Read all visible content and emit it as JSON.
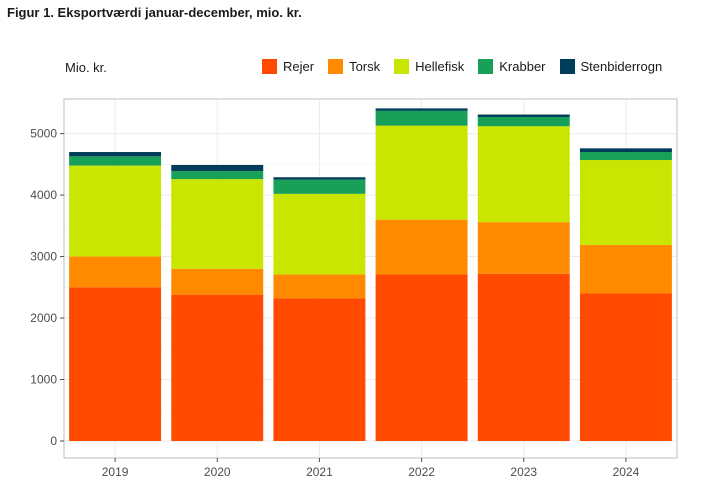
{
  "figure": {
    "title": "Figur 1. Eksportværdi januar-december, mio. kr."
  },
  "colors": {
    "Rejer": "#ff4a00",
    "Torsk": "#ff8a00",
    "Hellefisk": "#c8e600",
    "Krabber": "#18a058",
    "Stenbiderrogn": "#003d5b"
  },
  "chart_data": {
    "type": "bar",
    "stacked": true,
    "title": "Figur 1. Eksportværdi januar-december, mio. kr.",
    "xlabel": "",
    "ylabel": "Mio. kr.",
    "categories": [
      "2019",
      "2020",
      "2021",
      "2022",
      "2023",
      "2024"
    ],
    "series": [
      {
        "name": "Rejer",
        "values": [
          2500,
          2380,
          2320,
          2710,
          2720,
          2400
        ]
      },
      {
        "name": "Torsk",
        "values": [
          500,
          420,
          390,
          890,
          840,
          790
        ]
      },
      {
        "name": "Hellefisk",
        "values": [
          1480,
          1460,
          1310,
          1530,
          1560,
          1380
        ]
      },
      {
        "name": "Krabber",
        "values": [
          150,
          130,
          230,
          240,
          150,
          130
        ]
      },
      {
        "name": "Stenbiderrogn",
        "values": [
          70,
          100,
          40,
          40,
          40,
          60
        ]
      }
    ],
    "ylim": [
      0,
      5400
    ],
    "yticks": [
      0,
      1000,
      2000,
      3000,
      4000,
      5000
    ],
    "legend": "top",
    "grid": true
  }
}
